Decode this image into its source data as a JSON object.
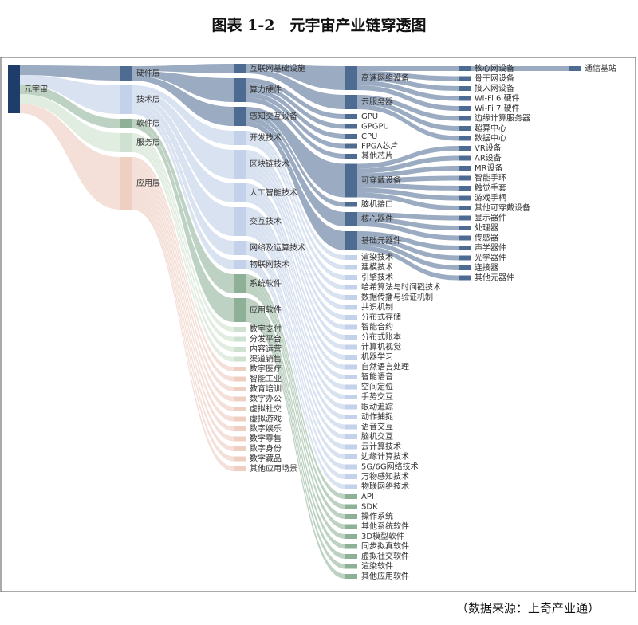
{
  "title": "图表 1-2　元宇宙产业链穿透图",
  "source": "（数据来源：上奇产业通）",
  "tree": {
    "label": "元宇宙",
    "children": [
      {
        "label": "硬件层",
        "children": [
          {
            "label": "互联网基础设施",
            "children": [
              {
                "label": "高速网络设备",
                "children": [
                  {
                    "label": "核心网设备",
                    "children": [
                      {
                        "label": "通信基站"
                      }
                    ]
                  },
                  {
                    "label": "骨干网设备"
                  },
                  {
                    "label": "接入网设备"
                  },
                  {
                    "label": "Wi-Fi 6 硬件"
                  },
                  {
                    "label": "Wi-Fi 7 硬件"
                  }
                ]
              },
              {
                "label": "云服务器",
                "children": [
                  {
                    "label": "边缘计算服务器"
                  },
                  {
                    "label": "超算中心"
                  },
                  {
                    "label": "数据中心"
                  }
                ]
              }
            ]
          },
          {
            "label": "算力硬件",
            "children": [
              {
                "label": "GPU"
              },
              {
                "label": "GPGPU"
              },
              {
                "label": "CPU"
              },
              {
                "label": "FPGA芯片"
              },
              {
                "label": "其他芯片"
              }
            ]
          },
          {
            "label": "感知交互设备",
            "children": [
              {
                "label": "可穿戴设备",
                "children": [
                  {
                    "label": "VR设备"
                  },
                  {
                    "label": "AR设备"
                  },
                  {
                    "label": "MR设备"
                  },
                  {
                    "label": "智能手环"
                  },
                  {
                    "label": "触觉手套"
                  },
                  {
                    "label": "游戏手柄"
                  },
                  {
                    "label": "其他可穿戴设备"
                  }
                ]
              },
              {
                "label": "脑机接口"
              },
              {
                "label": "核心器件",
                "children": [
                  {
                    "label": "显示器件"
                  },
                  {
                    "label": "处理器"
                  },
                  {
                    "label": "传感器"
                  }
                ]
              },
              {
                "label": "基础元器件",
                "children": [
                  {
                    "label": "声学器件"
                  },
                  {
                    "label": "光学器件"
                  },
                  {
                    "label": "连接器"
                  },
                  {
                    "label": "其他元器件"
                  }
                ]
              }
            ]
          }
        ]
      },
      {
        "label": "技术层",
        "children": [
          {
            "label": "开发技术",
            "children": [
              {
                "label": "渲染技术"
              },
              {
                "label": "建模技术"
              },
              {
                "label": "引擎技术"
              }
            ]
          },
          {
            "label": "区块链技术",
            "children": [
              {
                "label": "哈希算法与时间戳技术"
              },
              {
                "label": "数据传播与验证机制"
              },
              {
                "label": "共识机制"
              },
              {
                "label": "分布式存储"
              },
              {
                "label": "智能合约"
              },
              {
                "label": "分布式账本"
              }
            ]
          },
          {
            "label": "人工智能技术",
            "children": [
              {
                "label": "计算机视觉"
              },
              {
                "label": "机器学习"
              },
              {
                "label": "自然语言处理"
              },
              {
                "label": "智能语音"
              }
            ]
          },
          {
            "label": "交互技术",
            "children": [
              {
                "label": "空间定位"
              },
              {
                "label": "手势交互"
              },
              {
                "label": "眼动追踪"
              },
              {
                "label": "动作捕捉"
              },
              {
                "label": "语音交互"
              },
              {
                "label": "脑机交互"
              }
            ]
          },
          {
            "label": "网络及运算技术",
            "children": [
              {
                "label": "云计算技术"
              },
              {
                "label": "边缘计算技术"
              },
              {
                "label": "5G/6G网络技术"
              }
            ]
          },
          {
            "label": "物联网技术",
            "children": [
              {
                "label": "万物感知技术"
              },
              {
                "label": "物联网络技术"
              }
            ]
          }
        ]
      },
      {
        "label": "软件层",
        "children": [
          {
            "label": "系统软件",
            "children": [
              {
                "label": "API"
              },
              {
                "label": "SDK"
              },
              {
                "label": "操作系统"
              },
              {
                "label": "其他系统软件"
              }
            ]
          },
          {
            "label": "应用软件",
            "children": [
              {
                "label": "3D模型软件"
              },
              {
                "label": "同步拟真软件"
              },
              {
                "label": "虚拟社交软件"
              },
              {
                "label": "渲染软件"
              },
              {
                "label": "其他应用软件"
              }
            ]
          }
        ]
      },
      {
        "label": "服务层",
        "children": [
          {
            "label": "数字支付"
          },
          {
            "label": "分发平台"
          },
          {
            "label": "内容运营"
          },
          {
            "label": "渠道销售"
          }
        ]
      },
      {
        "label": "应用层",
        "children": [
          {
            "label": "数字医疗"
          },
          {
            "label": "智能工业"
          },
          {
            "label": "教育培训"
          },
          {
            "label": "数字办公"
          },
          {
            "label": "虚拟社交"
          },
          {
            "label": "虚拟游戏"
          },
          {
            "label": "数字娱乐"
          },
          {
            "label": "数字零售"
          },
          {
            "label": "数字身份"
          },
          {
            "label": "数字藏品"
          },
          {
            "label": "其他应用场景"
          }
        ]
      }
    ]
  }
}
